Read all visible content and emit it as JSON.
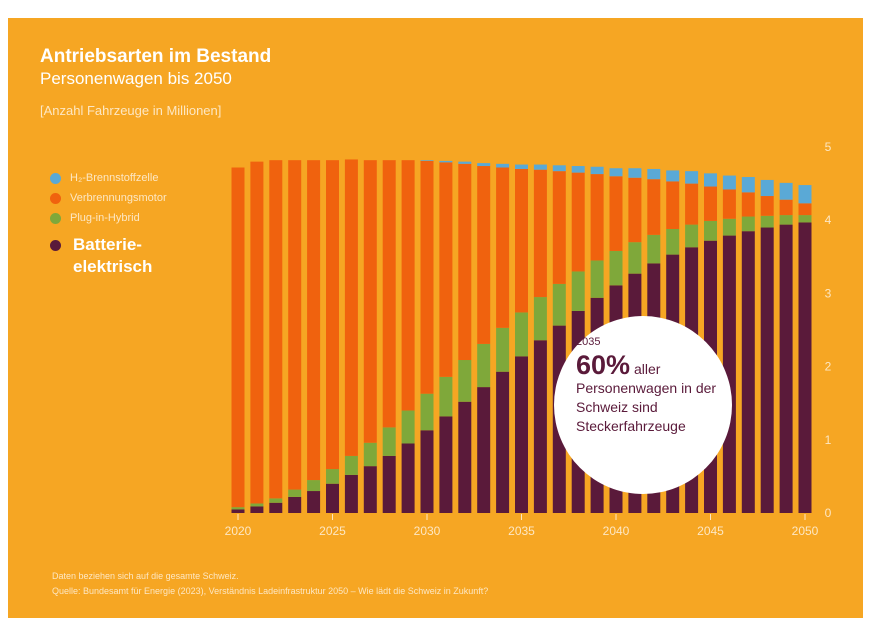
{
  "header": {
    "title": "Antriebsarten im Bestand",
    "subtitle": "Personenwagen bis 2050",
    "unit": "[Anzahl Fahrzeuge in Millionen]"
  },
  "legend": [
    {
      "name": "H₂-Brennstoffzelle",
      "color": "#5aa9d6"
    },
    {
      "name": "Verbrennungsmotor",
      "color": "#f0620e"
    },
    {
      "name": "Plug-in-Hybrid",
      "color": "#7fa83a"
    },
    {
      "name": "Batterie- elektrisch",
      "color": "#5a1a3a"
    }
  ],
  "callout": {
    "year": "2035",
    "percent": "60%",
    "text": "aller Personenwagen in der Schweiz sind Steckerfahrzeuge"
  },
  "footer": {
    "note": "Daten beziehen sich auf die gesamte Schweiz.",
    "source": "Quelle: Bundesamt für Energie (2023), Verständnis Ladeinfrastruktur 2050 – Wie lädt die Schweiz in Zukunft?"
  },
  "chart_data": {
    "type": "bar",
    "stacked": true,
    "ylim": [
      0,
      5
    ],
    "yticks": [
      0,
      1,
      2,
      3,
      4,
      5
    ],
    "xticks": [
      "2020",
      "2025",
      "2030",
      "2035",
      "2040",
      "2045",
      "2050"
    ],
    "categories": [
      "2020",
      "2021",
      "2022",
      "2023",
      "2024",
      "2025",
      "2026",
      "2027",
      "2028",
      "2029",
      "2030",
      "2031",
      "2032",
      "2033",
      "2034",
      "2035",
      "2036",
      "2037",
      "2038",
      "2039",
      "2040",
      "2041",
      "2042",
      "2043",
      "2044",
      "2045",
      "2046",
      "2047",
      "2048",
      "2049",
      "2050"
    ],
    "series": [
      {
        "name": "Batterie- elektrisch",
        "color": "#5a1a3a",
        "values": [
          0.05,
          0.09,
          0.14,
          0.22,
          0.3,
          0.4,
          0.52,
          0.64,
          0.78,
          0.95,
          1.13,
          1.32,
          1.52,
          1.72,
          1.93,
          2.14,
          2.36,
          2.56,
          2.76,
          2.94,
          3.11,
          3.27,
          3.41,
          3.53,
          3.63,
          3.72,
          3.79,
          3.85,
          3.9,
          3.94,
          3.97
        ]
      },
      {
        "name": "Plug-in-Hybrid",
        "color": "#7fa83a",
        "values": [
          0.03,
          0.04,
          0.06,
          0.1,
          0.15,
          0.2,
          0.26,
          0.32,
          0.39,
          0.45,
          0.5,
          0.54,
          0.57,
          0.59,
          0.6,
          0.6,
          0.59,
          0.57,
          0.54,
          0.51,
          0.47,
          0.43,
          0.39,
          0.35,
          0.31,
          0.27,
          0.23,
          0.2,
          0.16,
          0.13,
          0.1
        ]
      },
      {
        "name": "Verbrennungsmotor",
        "color": "#f0620e",
        "values": [
          4.64,
          4.67,
          4.62,
          4.5,
          4.37,
          4.22,
          4.05,
          3.86,
          3.65,
          3.42,
          3.18,
          2.93,
          2.68,
          2.43,
          2.19,
          1.96,
          1.74,
          1.54,
          1.35,
          1.18,
          1.02,
          0.88,
          0.76,
          0.65,
          0.56,
          0.47,
          0.4,
          0.33,
          0.27,
          0.21,
          0.16
        ]
      },
      {
        "name": "H₂-Brennstoffzelle",
        "color": "#5aa9d6",
        "values": [
          0,
          0,
          0,
          0,
          0,
          0,
          0,
          0,
          0,
          0,
          0.01,
          0.02,
          0.03,
          0.04,
          0.05,
          0.06,
          0.07,
          0.08,
          0.09,
          0.1,
          0.11,
          0.13,
          0.14,
          0.15,
          0.17,
          0.18,
          0.19,
          0.21,
          0.22,
          0.23,
          0.25
        ]
      }
    ]
  }
}
